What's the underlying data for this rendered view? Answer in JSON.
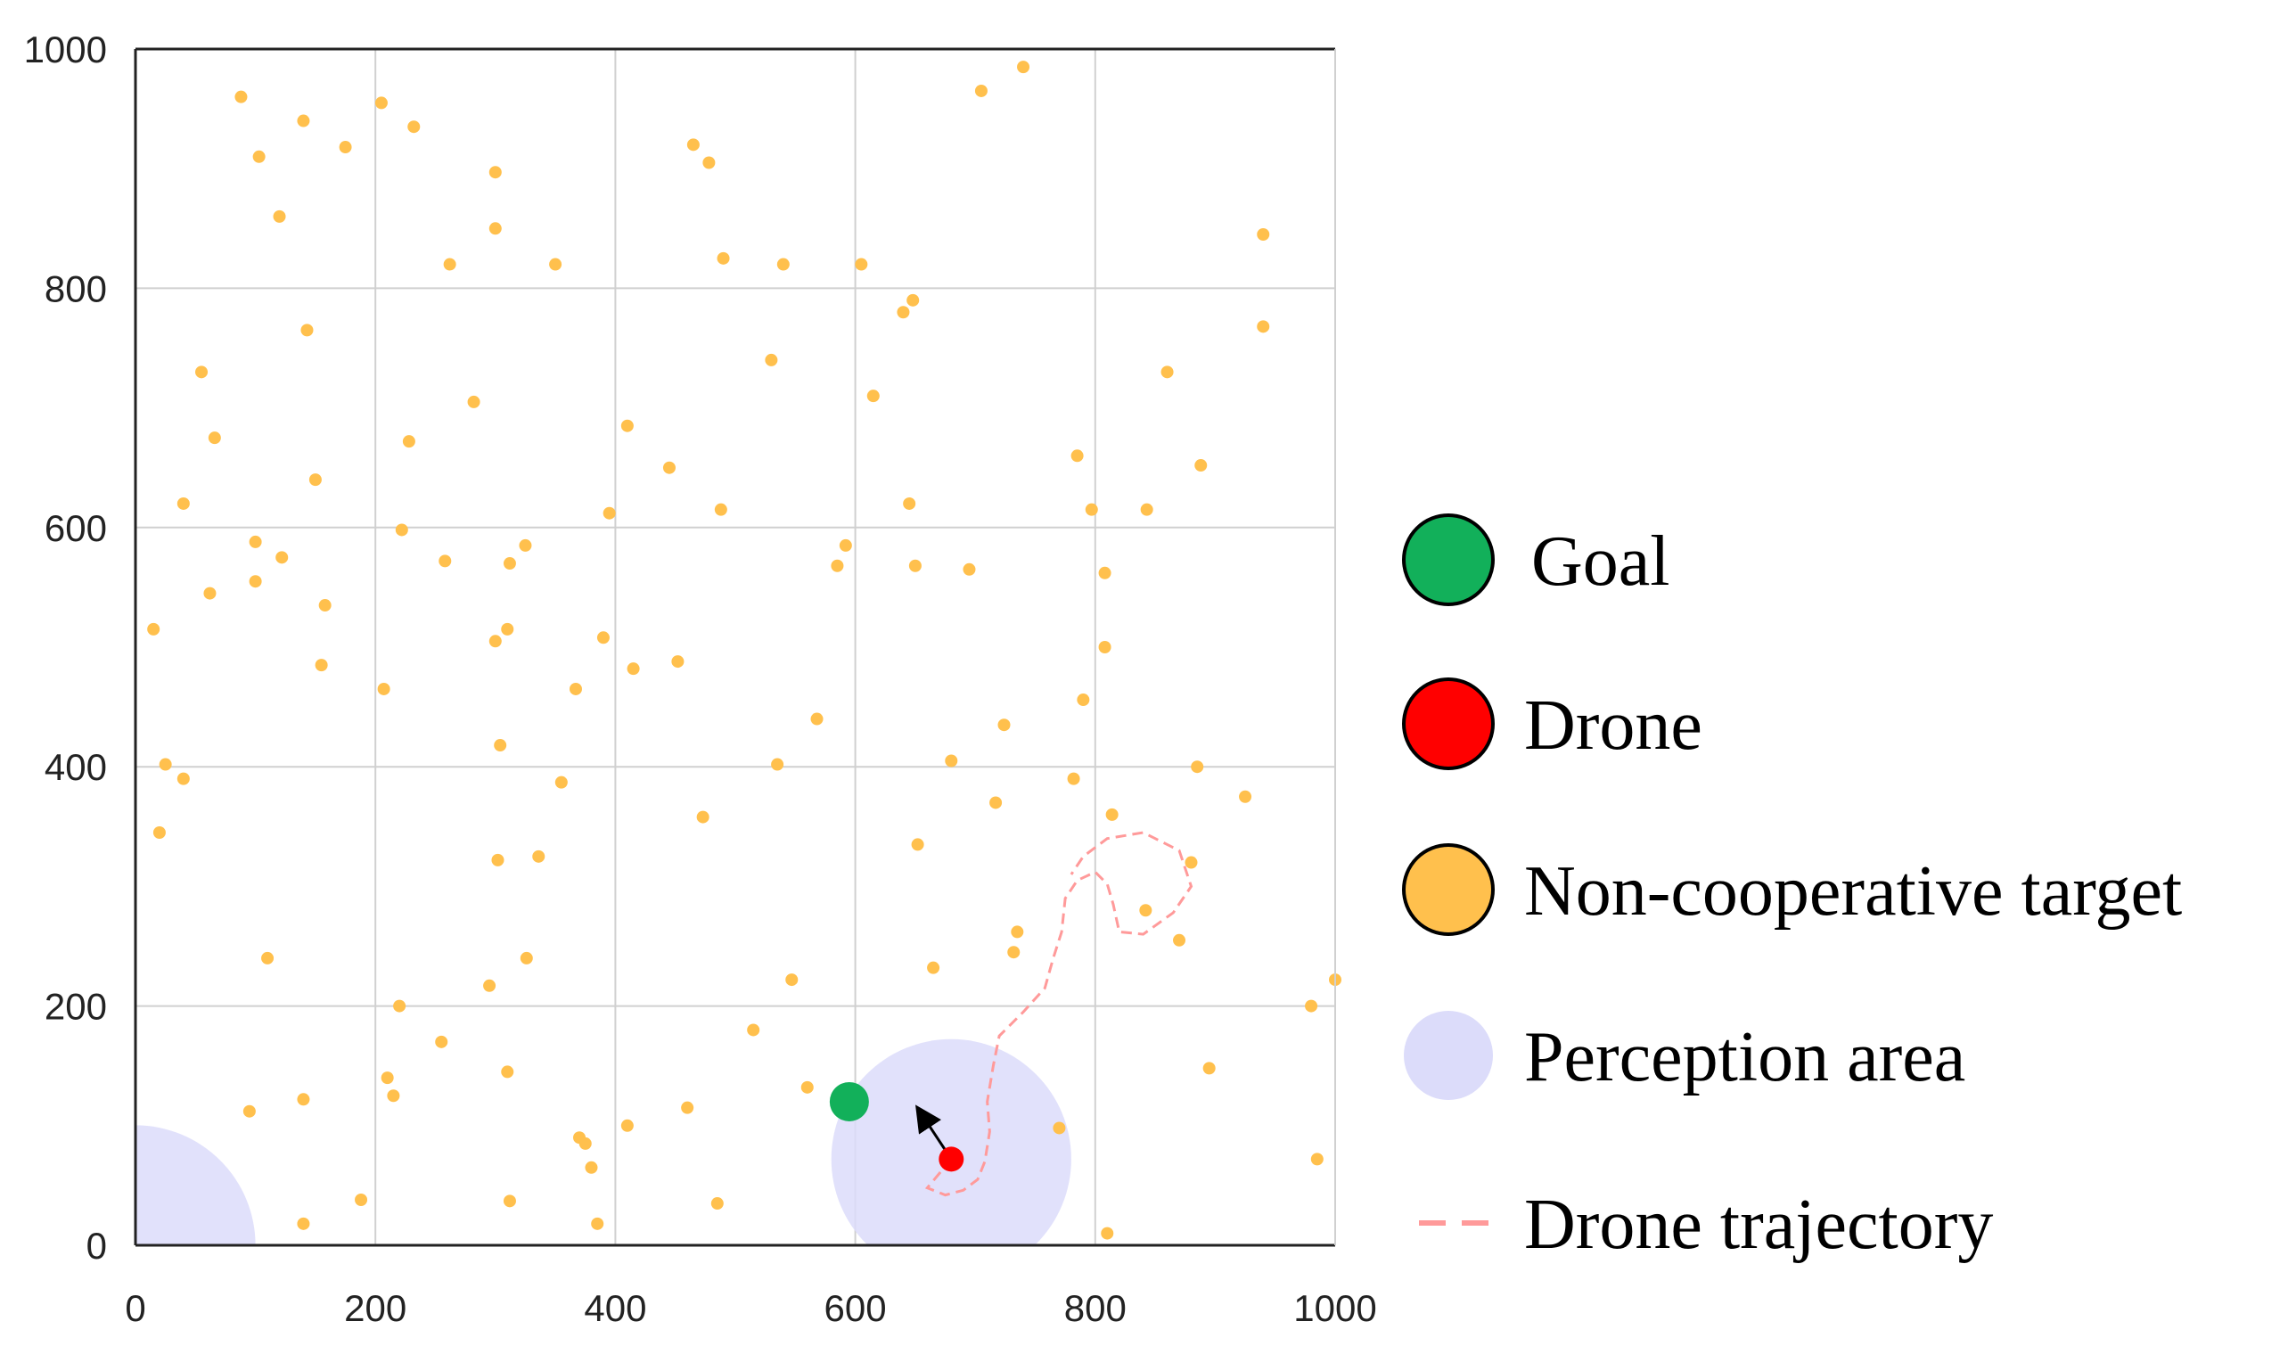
{
  "chart_data": {
    "type": "scatter",
    "title": "",
    "xlabel": "",
    "ylabel": "",
    "xlim": [
      0,
      1000
    ],
    "ylim": [
      0,
      1000
    ],
    "x_ticks": [
      0,
      200,
      400,
      600,
      800,
      1000
    ],
    "y_ticks": [
      0,
      200,
      400,
      600,
      800,
      1000
    ],
    "grid": true,
    "legend_position": "right",
    "colors": {
      "goal": "#12b05a",
      "drone": "#ff0000",
      "target": "#ffc04d",
      "perception": "#dcdcfa",
      "trajectory": "#ff9a9a",
      "grid": "#d0d0d0",
      "axis": "#222222"
    },
    "legend": {
      "goal": "Goal",
      "drone": "Drone",
      "target": "Non-cooperative target",
      "perception": "Perception area",
      "trajectory": "Drone trajectory"
    },
    "goal": {
      "x": 595,
      "y": 120
    },
    "drone": {
      "x": 680,
      "y": 72
    },
    "drone_heading": {
      "x": 655,
      "y": 110
    },
    "perception_areas": [
      {
        "x": 680,
        "y": 72,
        "r": 100
      },
      {
        "x": 0,
        "y": 0,
        "r": 100
      }
    ],
    "trajectory": [
      [
        680,
        72
      ],
      [
        670,
        60
      ],
      [
        660,
        48
      ],
      [
        675,
        42
      ],
      [
        690,
        46
      ],
      [
        702,
        55
      ],
      [
        708,
        70
      ],
      [
        712,
        95
      ],
      [
        710,
        120
      ],
      [
        715,
        150
      ],
      [
        720,
        175
      ],
      [
        740,
        195
      ],
      [
        758,
        215
      ],
      [
        765,
        240
      ],
      [
        772,
        262
      ],
      [
        775,
        290
      ],
      [
        785,
        305
      ],
      [
        800,
        312
      ],
      [
        810,
        302
      ],
      [
        815,
        285
      ],
      [
        820,
        262
      ],
      [
        840,
        260
      ],
      [
        865,
        278
      ],
      [
        880,
        300
      ],
      [
        870,
        330
      ],
      [
        840,
        345
      ],
      [
        810,
        340
      ],
      [
        790,
        325
      ],
      [
        780,
        310
      ]
    ],
    "targets": [
      [
        88,
        960
      ],
      [
        103,
        910
      ],
      [
        120,
        860
      ],
      [
        140,
        940
      ],
      [
        175,
        918
      ],
      [
        205,
        955
      ],
      [
        232,
        935
      ],
      [
        300,
        897
      ],
      [
        300,
        850
      ],
      [
        262,
        820
      ],
      [
        350,
        820
      ],
      [
        465,
        920
      ],
      [
        478,
        905
      ],
      [
        490,
        825
      ],
      [
        540,
        820
      ],
      [
        605,
        820
      ],
      [
        640,
        780
      ],
      [
        648,
        790
      ],
      [
        705,
        965
      ],
      [
        740,
        985
      ],
      [
        940,
        845
      ],
      [
        940,
        768
      ],
      [
        55,
        730
      ],
      [
        66,
        675
      ],
      [
        143,
        765
      ],
      [
        150,
        640
      ],
      [
        228,
        672
      ],
      [
        282,
        705
      ],
      [
        410,
        685
      ],
      [
        445,
        650
      ],
      [
        395,
        612
      ],
      [
        488,
        615
      ],
      [
        530,
        740
      ],
      [
        615,
        710
      ],
      [
        645,
        620
      ],
      [
        785,
        660
      ],
      [
        797,
        615
      ],
      [
        843,
        615
      ],
      [
        860,
        730
      ],
      [
        888,
        652
      ],
      [
        40,
        620
      ],
      [
        15,
        515
      ],
      [
        62,
        545
      ],
      [
        100,
        588
      ],
      [
        122,
        575
      ],
      [
        100,
        555
      ],
      [
        158,
        535
      ],
      [
        155,
        485
      ],
      [
        207,
        465
      ],
      [
        222,
        598
      ],
      [
        258,
        572
      ],
      [
        312,
        570
      ],
      [
        325,
        585
      ],
      [
        300,
        505
      ],
      [
        310,
        515
      ],
      [
        390,
        508
      ],
      [
        415,
        482
      ],
      [
        452,
        488
      ],
      [
        367,
        465
      ],
      [
        304,
        418
      ],
      [
        355,
        387
      ],
      [
        568,
        440
      ],
      [
        585,
        568
      ],
      [
        592,
        585
      ],
      [
        650,
        568
      ],
      [
        695,
        565
      ],
      [
        808,
        562
      ],
      [
        808,
        500
      ],
      [
        790,
        456
      ],
      [
        724,
        435
      ],
      [
        25,
        402
      ],
      [
        40,
        390
      ],
      [
        20,
        345
      ],
      [
        110,
        240
      ],
      [
        220,
        200
      ],
      [
        255,
        170
      ],
      [
        295,
        217
      ],
      [
        310,
        145
      ],
      [
        302,
        322
      ],
      [
        326,
        240
      ],
      [
        336,
        325
      ],
      [
        473,
        358
      ],
      [
        535,
        402
      ],
      [
        547,
        222
      ],
      [
        680,
        405
      ],
      [
        652,
        335
      ],
      [
        665,
        232
      ],
      [
        717,
        370
      ],
      [
        732,
        245
      ],
      [
        735,
        262
      ],
      [
        782,
        390
      ],
      [
        814,
        360
      ],
      [
        880,
        320
      ],
      [
        842,
        280
      ],
      [
        870,
        255
      ],
      [
        885,
        400
      ],
      [
        925,
        375
      ],
      [
        1000,
        222
      ],
      [
        980,
        200
      ],
      [
        895,
        148
      ],
      [
        985,
        72
      ],
      [
        810,
        10
      ],
      [
        770,
        98
      ],
      [
        210,
        140
      ],
      [
        215,
        125
      ],
      [
        140,
        122
      ],
      [
        95,
        112
      ],
      [
        188,
        38
      ],
      [
        140,
        18
      ],
      [
        312,
        37
      ],
      [
        370,
        90
      ],
      [
        375,
        85
      ],
      [
        380,
        65
      ],
      [
        385,
        18
      ],
      [
        410,
        100
      ],
      [
        460,
        115
      ],
      [
        485,
        35
      ],
      [
        515,
        180
      ],
      [
        560,
        132
      ]
    ]
  }
}
